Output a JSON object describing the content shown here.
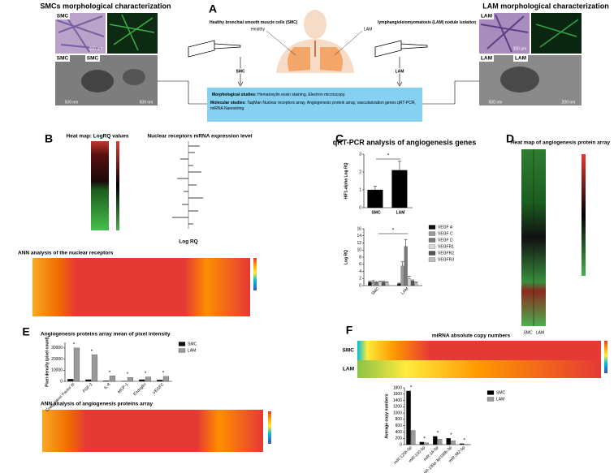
{
  "panel_a": {
    "label": "A",
    "smc_title": "SMCs morphological characterization",
    "lam_title": "LAM morphological characterization",
    "smc_source": "Healthy bronchial smooth muscle cells (SMC)",
    "lam_source": "lymphangioleiomyomatosis (LAM) nodule isolation",
    "lung_healthy": "Healthy",
    "lung_lam": "LAM",
    "arrow_smc": "SMC",
    "arrow_lam": "LAM",
    "image_smc": "SMC",
    "image_lam": "LAM",
    "scale_light": "200 µm",
    "scale_em": "500 nm",
    "scale_em_lam": "200 nm",
    "morph_head": "Morphological studies:",
    "morph_text": "Hematoxylin eosin staining, Electron microscopy.",
    "mol_head": "Molecular studies:",
    "mol_text": "TaqMan Nuclear receptors array, Angiogenesis protein array, vascularization genes qRT-PCR, miRNA Nanostring."
  },
  "panel_b": {
    "label": "B",
    "heatmap_title": "Heat map: LogRQ values",
    "bars_title": "Nuclear receptors mRNA expression level",
    "bars_axis": "Log RQ",
    "ann_title": "ANN analysis of the nuclear receptors"
  },
  "panel_c": {
    "label": "C",
    "title": "qRT-PCR analysis of angiogenesis genes"
  },
  "panel_d": {
    "label": "D",
    "title": "Heat map of angiogenesis protein array",
    "col_smc": "SMC",
    "col_lam": "LAM"
  },
  "panel_e": {
    "label": "E",
    "title": "Angiogenesis proteins array mean of pixel intensity",
    "ann_title": "ANN analysis of angiogenesis proteins array"
  },
  "panel_f": {
    "label": "F",
    "title": "miRNA absolute copy numbers",
    "row_smc": "SMC",
    "row_lam": "LAM"
  },
  "chart_data": [
    {
      "type": "bar",
      "y_label": "HIF1-alpha Log RQ",
      "categories": [
        "SMC",
        "LAM"
      ],
      "series": [
        {
          "name": "HIF1-alpha",
          "color": "#000000",
          "values": [
            1,
            2.1
          ],
          "errors": [
            0.2,
            0.5
          ]
        }
      ],
      "ylim": [
        0,
        3
      ],
      "yticks": [
        0,
        1,
        2,
        3
      ],
      "significance": "*",
      "legend": false
    },
    {
      "type": "bar",
      "y_label": "Log RQ",
      "categories": [
        "SMC",
        "LAM"
      ],
      "series": [
        {
          "name": "VEGF A",
          "color": "#111111",
          "values": [
            1,
            0.5
          ],
          "errors": [
            0.2,
            0.2
          ]
        },
        {
          "name": "VEGF C",
          "color": "#9a9a9a",
          "values": [
            1.1,
            5.5
          ],
          "errors": [
            0.3,
            1.2
          ]
        },
        {
          "name": "VEGF D",
          "color": "#7a7a7a",
          "values": [
            0.9,
            11
          ],
          "errors": [
            0.2,
            2
          ]
        },
        {
          "name": "VEGFR1",
          "color": "#d8d8d8",
          "values": [
            1,
            2
          ],
          "errors": [
            0.2,
            0.6
          ]
        },
        {
          "name": "VEGFR2",
          "color": "#555555",
          "values": [
            1,
            1.3
          ],
          "errors": [
            0.2,
            0.3
          ]
        },
        {
          "name": "VEGFR3",
          "color": "#bdbdbd",
          "values": [
            0.9,
            0.8
          ],
          "errors": [
            0.2,
            0.2
          ]
        }
      ],
      "ylim": [
        0,
        16
      ],
      "yticks": [
        0,
        2,
        4,
        6,
        8,
        10,
        12,
        14,
        16
      ],
      "significance": "*",
      "legend": true
    },
    {
      "type": "bar",
      "y_label": "Pixel density (pixel count)",
      "categories": [
        "Coagulation Factor III",
        "FGF-2",
        "IL-8",
        "MCP-1",
        "Endoglin",
        "VEGFC"
      ],
      "series": [
        {
          "name": "SMC",
          "color": "#111111",
          "values": [
            2000,
            1500,
            500,
            200,
            1500,
            1200
          ]
        },
        {
          "name": "LAM",
          "color": "#9a9a9a",
          "values": [
            30000,
            24000,
            5000,
            3500,
            4000,
            4500
          ]
        }
      ],
      "ylim": [
        0,
        35000
      ],
      "yticks": [
        0,
        10000,
        20000,
        30000
      ],
      "significance": "*",
      "legend": true
    },
    {
      "type": "bar",
      "y_label": "Average copy numbers",
      "categories": [
        "miR-125b-5p",
        "miR-100-5p",
        "miR-16-5p",
        "miR-199a-3p/199b-3p",
        "miR-382-5p"
      ],
      "series": [
        {
          "name": "SMC",
          "color": "#000000",
          "values": [
            1700,
            80,
            260,
            200,
            30
          ]
        },
        {
          "name": "LAM",
          "color": "#9a9a9a",
          "values": [
            450,
            60,
            170,
            120,
            10
          ]
        }
      ],
      "ylim": [
        0,
        1800
      ],
      "yticks": [
        0,
        200,
        400,
        600,
        800,
        1000,
        1200,
        1400,
        1600,
        1800
      ],
      "significance": "*",
      "legend": true
    }
  ]
}
